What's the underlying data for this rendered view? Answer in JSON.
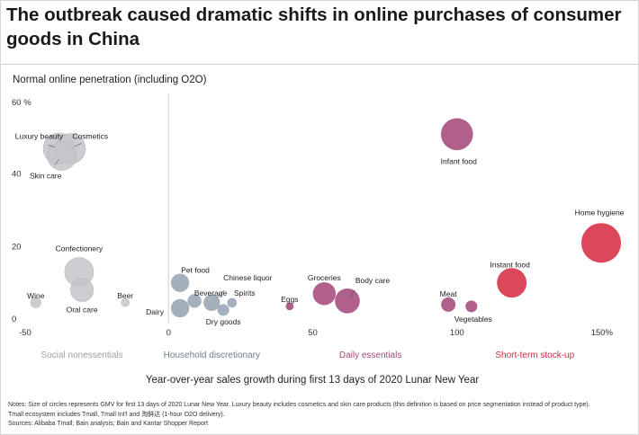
{
  "header": {
    "title": "The outbreak caused dramatic shifts in online purchases of consumer goods in China"
  },
  "colors": {
    "social_nonessentials": "#c3c6c9",
    "household_discretionary": "#9aa8b5",
    "daily_essentials": "#a84f7f",
    "short_term_stockup": "#d8334a",
    "category_text": {
      "social_nonessentials": "#9a9ea3",
      "household_discretionary": "#6f7f8f",
      "daily_essentials": "#a34b7a",
      "short_term_stockup": "#d02a3e"
    }
  },
  "chart_data": {
    "type": "scatter",
    "title": "",
    "ylabel": "Normal online penetration (including O2O)",
    "xlabel": "Year-over-year sales growth during first 13 days of 2020 Lunar New Year",
    "xlim": [
      -50,
      150
    ],
    "ylim": [
      0,
      60
    ],
    "x_ticks": [
      "-50",
      "0",
      "50",
      "100",
      "150%"
    ],
    "x_tick_values": [
      -50,
      0,
      50,
      100,
      150
    ],
    "y_ticks": [
      "0",
      "20",
      "40",
      "60 %"
    ],
    "y_tick_values": [
      0,
      20,
      40,
      60
    ],
    "grid": false,
    "groups": [
      {
        "key": "social_nonessentials",
        "label": "Social nonessentials",
        "anchor_x": -30
      },
      {
        "key": "household_discretionary",
        "label": "Household discretionary",
        "anchor_x": 15
      },
      {
        "key": "daily_essentials",
        "label": "Daily essentials",
        "anchor_x": 70
      },
      {
        "key": "short_term_stockup",
        "label": "Short-term stock-up",
        "anchor_x": 127
      }
    ],
    "points": [
      {
        "label": "Luxury beauty",
        "x": -38,
        "y": 47,
        "size": 6,
        "group": "social_nonessentials"
      },
      {
        "label": "Cosmetics",
        "x": -34,
        "y": 47,
        "size": 5.5,
        "group": "social_nonessentials"
      },
      {
        "label": "Skin care",
        "x": -37,
        "y": 45,
        "size": 5,
        "group": "social_nonessentials"
      },
      {
        "label": "Confectionery",
        "x": -31,
        "y": 13,
        "size": 5,
        "group": "social_nonessentials"
      },
      {
        "label": "Oral care",
        "x": -30,
        "y": 8,
        "size": 3,
        "group": "social_nonessentials"
      },
      {
        "label": "Wine",
        "x": -46,
        "y": 4.5,
        "size": 0.4,
        "group": "social_nonessentials"
      },
      {
        "label": "Beer",
        "x": -15,
        "y": 4.5,
        "size": 0.2,
        "group": "social_nonessentials"
      },
      {
        "label": "Pet food",
        "x": 4,
        "y": 10,
        "size": 1.8,
        "group": "household_discretionary"
      },
      {
        "label": "Beverage",
        "x": 9,
        "y": 5,
        "size": 0.9,
        "group": "household_discretionary"
      },
      {
        "label": "Dairy",
        "x": 4,
        "y": 3,
        "size": 1.8,
        "group": "household_discretionary"
      },
      {
        "label": "Chinese liquor",
        "x": 15,
        "y": 4.5,
        "size": 1.4,
        "group": "household_discretionary"
      },
      {
        "label": "Spirits",
        "x": 22,
        "y": 4.5,
        "size": 0.35,
        "group": "household_discretionary"
      },
      {
        "label": "Dry goods",
        "x": 19,
        "y": 2.5,
        "size": 0.6,
        "group": "household_discretionary"
      },
      {
        "label": "Eggs",
        "x": 42,
        "y": 3.5,
        "size": 0.2,
        "group": "daily_essentials"
      },
      {
        "label": "Groceries",
        "x": 54,
        "y": 7,
        "size": 3,
        "group": "daily_essentials"
      },
      {
        "label": "Body care",
        "x": 62,
        "y": 5,
        "size": 3.6,
        "group": "daily_essentials"
      },
      {
        "label": "Infant food",
        "x": 100,
        "y": 51,
        "size": 6.3,
        "group": "daily_essentials"
      },
      {
        "label": "Meat",
        "x": 97,
        "y": 4,
        "size": 1,
        "group": "daily_essentials"
      },
      {
        "label": "Vegetables",
        "x": 105,
        "y": 3.5,
        "size": 0.6,
        "group": "daily_essentials"
      },
      {
        "label": "Instant food",
        "x": 119,
        "y": 10,
        "size": 5.3,
        "group": "short_term_stockup"
      },
      {
        "label": "Home hygiene",
        "x": 150,
        "y": 21,
        "size": 10,
        "group": "short_term_stockup"
      }
    ]
  },
  "notes": {
    "line1": "Notes: Size of circles represents GMV for first 13 days of 2020 Lunar New Year. Luxury beauty includes cosmetics and skin care products (this definition is based on price segmentation instead of product type).",
    "line2": "Tmall ecosystem includes Tmall, Tmall Int'l and 淘鲜达 (1-hour O2O delivery).",
    "line3": "Sources: Alibaba Tmall; Bain analysis; Bain and Kantar Shopper Report"
  }
}
